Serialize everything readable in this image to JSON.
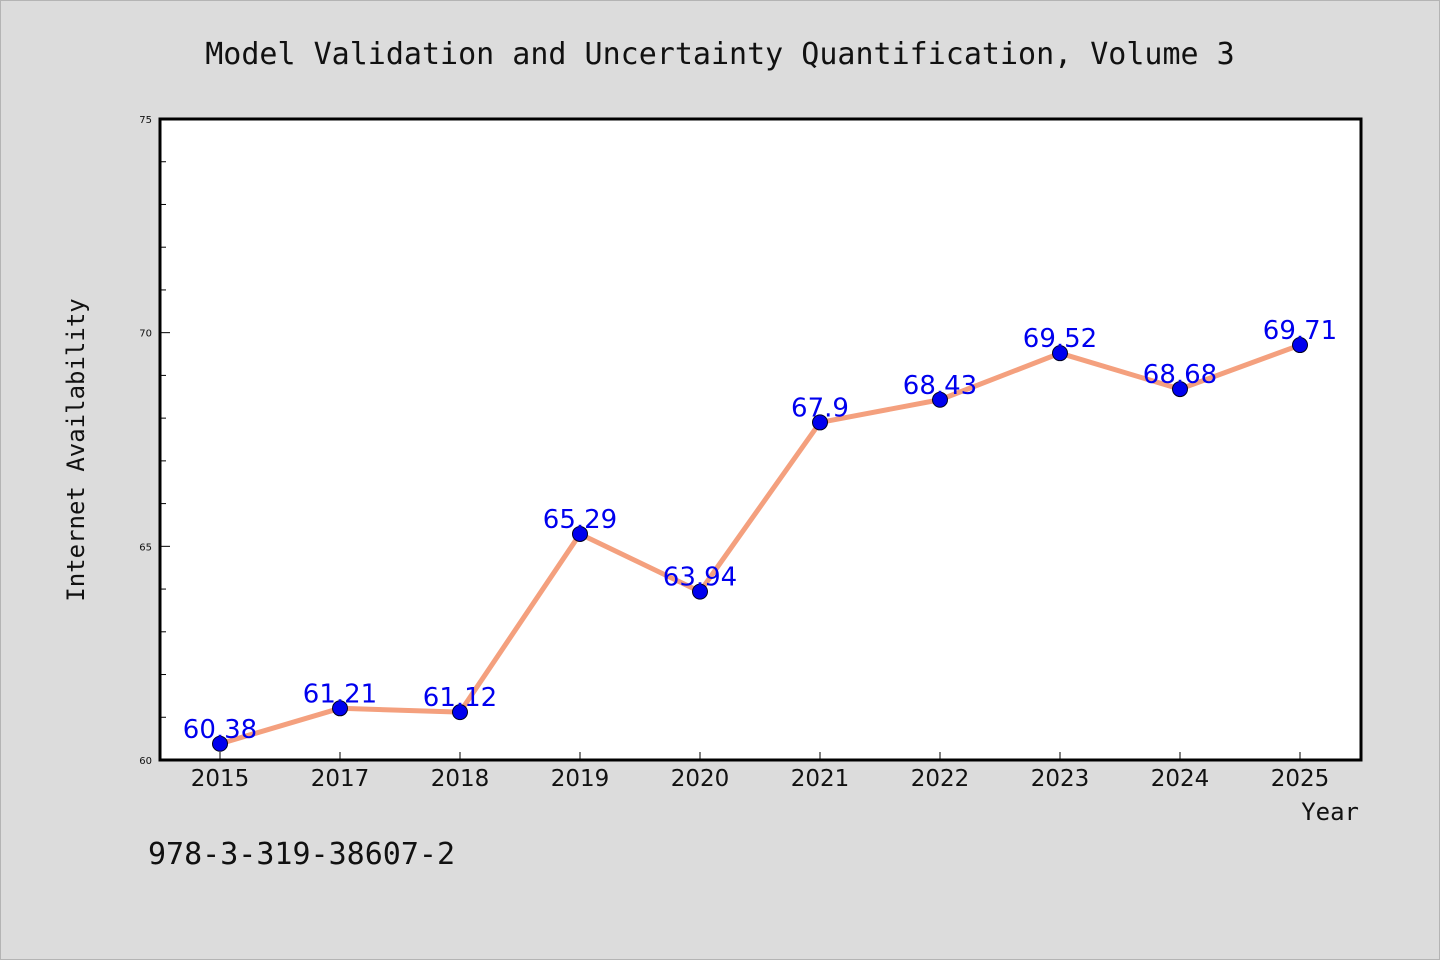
{
  "chart_data": {
    "type": "line",
    "title": "Model Validation and Uncertainty Quantification, Volume 3",
    "xlabel": "Year",
    "ylabel": "Internet Availability",
    "categories": [
      "2015",
      "2017",
      "2018",
      "2019",
      "2020",
      "2021",
      "2022",
      "2023",
      "2024",
      "2025"
    ],
    "series": [
      {
        "values": [
          60.38,
          61.21,
          61.12,
          65.29,
          63.94,
          67.9,
          68.43,
          69.52,
          68.68,
          69.71
        ],
        "data_labels": [
          "60.38",
          "61.21",
          "61.12",
          "65.29",
          "63.94",
          "67.9",
          "68.43",
          "69.52",
          "68.68",
          "69.71"
        ]
      }
    ],
    "ylim": [
      60,
      75
    ],
    "yticks": [
      "60",
      "65",
      "70",
      "75"
    ],
    "grid": false,
    "legend": "none",
    "colors": {
      "line": "#f4a07e",
      "marker": "#0000ee",
      "data_label": "#0000ee",
      "background": "#dcdcdc",
      "plot_background": "#ffffff"
    }
  },
  "footer": {
    "isbn": "978-3-319-38607-2"
  }
}
